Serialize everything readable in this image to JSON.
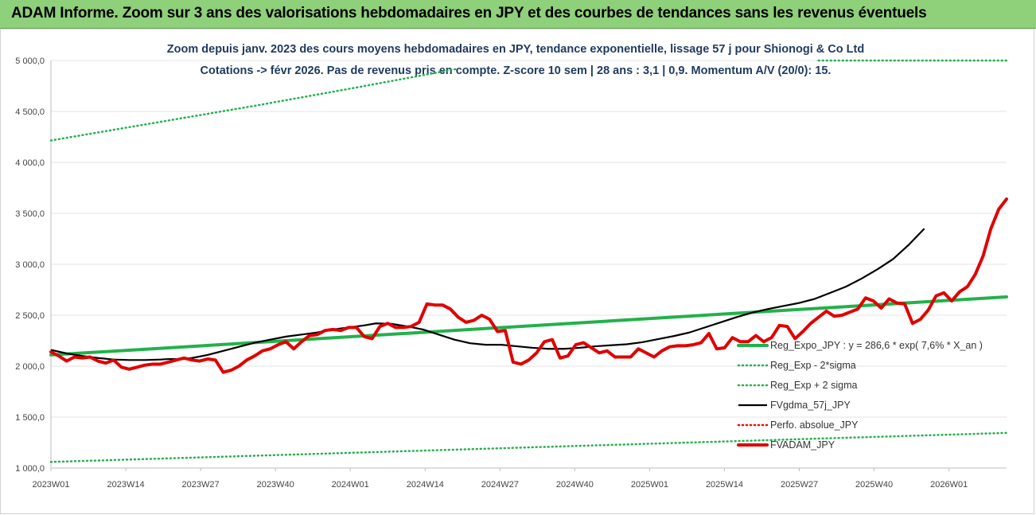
{
  "header": {
    "title": "ADAM Informe. Zoom sur 3 ans des valorisations hebdomadaires en JPY et des courbes de tendances sans les revenus éventuels"
  },
  "chart_data": {
    "type": "line",
    "title": "Zoom depuis janv. 2023 des cours moyens hebdomadaires en JPY, tendance exponentielle, lissage 57 j pour Shionogi & Co Ltd",
    "subtitle": "Cotations -> févr 2026. Pas de revenus pris en compte. Z-score 10 sem | 28 ans : 3,1 | 0,9. Momentum A/V (20/0): 15.",
    "ylim": [
      1000,
      5000
    ],
    "y_ticks": [
      "1 000,0",
      "1 500,0",
      "2 000,0",
      "2 500,0",
      "3 000,0",
      "3 500,0",
      "4 000,0",
      "4 500,0",
      "5 000,0"
    ],
    "x_tick_labels": [
      "2023W01",
      "2023W14",
      "2023W27",
      "2023W40",
      "2024W01",
      "2024W14",
      "2024W27",
      "2024W40",
      "2025W01",
      "2025W14",
      "2025W27",
      "2025W40",
      "2026W01"
    ],
    "x_weeks_total": 166,
    "legend_position": "right-middle",
    "series": [
      {
        "name": "Reg_Expo_JPY : y = 286,6 * exp( 7,6% *  X_an )",
        "color": "#22b14c",
        "style": "thick",
        "values": [
          [
            0,
            2110
          ],
          [
            165,
            2680
          ]
        ]
      },
      {
        "name": "Reg_Exp - 2*sigma",
        "color": "#22b14c",
        "style": "dotted",
        "values": [
          [
            0,
            1060
          ],
          [
            165,
            1345
          ]
        ]
      },
      {
        "name": "Reg_Exp + 2 sigma",
        "color": "#22b14c",
        "style": "dotted",
        "values": [
          [
            0,
            4215
          ],
          [
            26,
            4385
          ],
          [
            52,
            4555
          ],
          [
            78,
            4735
          ],
          [
            104,
            4920
          ],
          [
            165,
            5000
          ]
        ]
      },
      {
        "name": "FVgdma_57j_JPY",
        "color": "#000000",
        "style": "solid",
        "values": [
          [
            0,
            2160
          ],
          [
            4,
            2125
          ],
          [
            8,
            2100
          ],
          [
            12,
            2080
          ],
          [
            16,
            2065
          ],
          [
            20,
            2060
          ],
          [
            24,
            2060
          ],
          [
            28,
            2065
          ],
          [
            30,
            2070
          ],
          [
            34,
            2070
          ],
          [
            36,
            2080
          ],
          [
            40,
            2110
          ],
          [
            44,
            2150
          ],
          [
            48,
            2190
          ],
          [
            52,
            2230
          ],
          [
            56,
            2260
          ],
          [
            60,
            2290
          ],
          [
            64,
            2310
          ],
          [
            68,
            2330
          ],
          [
            72,
            2360
          ],
          [
            76,
            2380
          ],
          [
            80,
            2400
          ],
          [
            83,
            2420
          ],
          [
            87,
            2415
          ],
          [
            91,
            2390
          ],
          [
            95,
            2360
          ],
          [
            99,
            2310
          ],
          [
            103,
            2260
          ],
          [
            107,
            2225
          ],
          [
            111,
            2210
          ],
          [
            115,
            2210
          ],
          [
            119,
            2195
          ],
          [
            123,
            2180
          ],
          [
            127,
            2170
          ],
          [
            131,
            2170
          ],
          [
            135,
            2180
          ],
          [
            139,
            2195
          ],
          [
            143,
            2205
          ],
          [
            147,
            2215
          ],
          [
            151,
            2235
          ],
          [
            155,
            2265
          ],
          [
            159,
            2295
          ],
          [
            163,
            2330
          ],
          [
            167,
            2380
          ],
          [
            171,
            2430
          ],
          [
            175,
            2480
          ],
          [
            179,
            2525
          ],
          [
            183,
            2560
          ],
          [
            187,
            2590
          ],
          [
            191,
            2620
          ],
          [
            195,
            2660
          ],
          [
            199,
            2720
          ],
          [
            203,
            2780
          ],
          [
            207,
            2860
          ],
          [
            211,
            2950
          ],
          [
            215,
            3050
          ],
          [
            219,
            3190
          ],
          [
            223,
            3350
          ]
        ]
      },
      {
        "name": "Perfo. absolue_JPY",
        "color": "#ff0000",
        "style": "dotted",
        "values": []
      },
      {
        "name": "FVADAM_JPY",
        "color": "#e00000",
        "style": "thick",
        "values": [
          [
            0,
            2140
          ],
          [
            2,
            2100
          ],
          [
            4,
            2050
          ],
          [
            6,
            2090
          ],
          [
            8,
            2080
          ],
          [
            10,
            2090
          ],
          [
            12,
            2050
          ],
          [
            14,
            2030
          ],
          [
            16,
            2060
          ],
          [
            18,
            1990
          ],
          [
            20,
            1970
          ],
          [
            22,
            1990
          ],
          [
            24,
            2010
          ],
          [
            26,
            2020
          ],
          [
            28,
            2020
          ],
          [
            30,
            2040
          ],
          [
            32,
            2060
          ],
          [
            34,
            2080
          ],
          [
            36,
            2060
          ],
          [
            38,
            2050
          ],
          [
            40,
            2070
          ],
          [
            42,
            2060
          ],
          [
            44,
            1940
          ],
          [
            46,
            1960
          ],
          [
            48,
            2000
          ],
          [
            50,
            2060
          ],
          [
            52,
            2100
          ],
          [
            54,
            2150
          ],
          [
            56,
            2170
          ],
          [
            58,
            2210
          ],
          [
            60,
            2240
          ],
          [
            62,
            2170
          ],
          [
            64,
            2240
          ],
          [
            66,
            2300
          ],
          [
            68,
            2310
          ],
          [
            70,
            2350
          ],
          [
            72,
            2360
          ],
          [
            74,
            2350
          ],
          [
            76,
            2380
          ],
          [
            78,
            2380
          ],
          [
            80,
            2290
          ],
          [
            82,
            2270
          ],
          [
            84,
            2390
          ],
          [
            86,
            2420
          ],
          [
            88,
            2380
          ],
          [
            90,
            2380
          ],
          [
            92,
            2390
          ],
          [
            94,
            2430
          ],
          [
            96,
            2610
          ],
          [
            98,
            2600
          ],
          [
            100,
            2600
          ],
          [
            102,
            2560
          ],
          [
            104,
            2480
          ],
          [
            106,
            2430
          ],
          [
            108,
            2450
          ],
          [
            110,
            2500
          ],
          [
            112,
            2460
          ],
          [
            114,
            2340
          ],
          [
            116,
            2350
          ],
          [
            118,
            2040
          ],
          [
            120,
            2020
          ],
          [
            122,
            2060
          ],
          [
            124,
            2130
          ],
          [
            126,
            2240
          ],
          [
            128,
            2260
          ],
          [
            130,
            2080
          ],
          [
            132,
            2100
          ],
          [
            134,
            2210
          ],
          [
            136,
            2230
          ],
          [
            138,
            2180
          ],
          [
            140,
            2130
          ],
          [
            142,
            2150
          ],
          [
            144,
            2090
          ],
          [
            146,
            2090
          ],
          [
            148,
            2090
          ],
          [
            150,
            2170
          ],
          [
            152,
            2130
          ],
          [
            154,
            2090
          ],
          [
            156,
            2150
          ],
          [
            158,
            2190
          ],
          [
            160,
            2200
          ],
          [
            162,
            2200
          ],
          [
            164,
            2210
          ],
          [
            166,
            2230
          ],
          [
            168,
            2320
          ],
          [
            170,
            2170
          ],
          [
            172,
            2180
          ],
          [
            174,
            2280
          ],
          [
            176,
            2240
          ],
          [
            178,
            2240
          ],
          [
            180,
            2300
          ],
          [
            182,
            2240
          ],
          [
            184,
            2280
          ],
          [
            186,
            2400
          ],
          [
            188,
            2390
          ],
          [
            190,
            2270
          ],
          [
            192,
            2340
          ],
          [
            194,
            2420
          ],
          [
            196,
            2480
          ],
          [
            198,
            2540
          ],
          [
            200,
            2490
          ],
          [
            202,
            2500
          ],
          [
            204,
            2530
          ],
          [
            206,
            2560
          ],
          [
            208,
            2670
          ],
          [
            210,
            2640
          ],
          [
            212,
            2570
          ],
          [
            214,
            2660
          ],
          [
            216,
            2620
          ],
          [
            218,
            2610
          ],
          [
            220,
            2420
          ],
          [
            222,
            2460
          ],
          [
            224,
            2550
          ],
          [
            226,
            2690
          ],
          [
            228,
            2720
          ],
          [
            230,
            2640
          ],
          [
            232,
            2730
          ],
          [
            234,
            2780
          ],
          [
            236,
            2900
          ],
          [
            238,
            3080
          ],
          [
            240,
            3350
          ],
          [
            242,
            3540
          ],
          [
            244,
            3640
          ]
        ]
      }
    ]
  }
}
